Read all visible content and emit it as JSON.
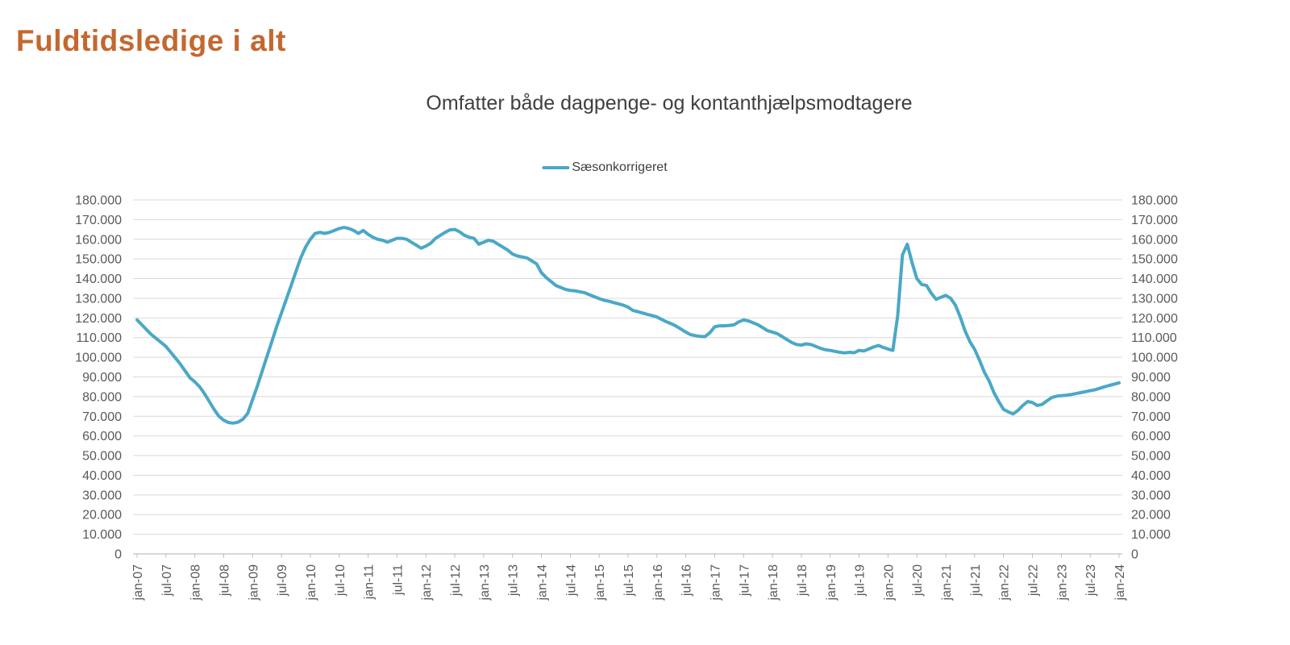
{
  "page": {
    "title": "Fuldtidsledige i alt"
  },
  "colors": {
    "title": "#C4682F",
    "subtitle": "#3F3F3F",
    "text": "#595959",
    "grid": "#D9D9D9",
    "axis": "#BFBFBF",
    "series": "#4AA8C6",
    "background": "#FFFFFF"
  },
  "legend": {
    "label": "Sæsonkorrigeret"
  },
  "chart_data": {
    "type": "line",
    "title": "Omfatter både dagpenge- og kontanthjælpsmodtagere",
    "x_unit": "month",
    "x_start": "jan-07",
    "x_end": "jan-24",
    "tick_every_months": 6,
    "x_tick_labels": [
      "jan-07",
      "jul-07",
      "jan-08",
      "jul-08",
      "jan-09",
      "jul-09",
      "jan-10",
      "jul-10",
      "jan-11",
      "jul-11",
      "jan-12",
      "jul-12",
      "jan-13",
      "jul-13",
      "jan-14",
      "jul-14",
      "jan-15",
      "jul-15",
      "jan-16",
      "jul-16",
      "jan-17",
      "jul-17",
      "jan-18",
      "jul-18",
      "jan-19",
      "jul-19",
      "jan-20",
      "jul-20",
      "jan-21",
      "jul-21",
      "jan-22",
      "jul-22",
      "jan-23",
      "jul-23",
      "jan-24"
    ],
    "ylim": [
      0,
      180000
    ],
    "ytick_step": 10000,
    "y_tick_labels": [
      "0",
      "10.000",
      "20.000",
      "30.000",
      "40.000",
      "50.000",
      "60.000",
      "70.000",
      "80.000",
      "90.000",
      "100.000",
      "110.000",
      "120.000",
      "130.000",
      "140.000",
      "150.000",
      "160.000",
      "170.000",
      "180.000"
    ],
    "grid": true,
    "legend_position": "top",
    "series": [
      {
        "name": "Sæsonkorrigeret",
        "color": "#4AA8C6",
        "monthly_values": [
          119000,
          116500,
          114000,
          111500,
          109500,
          107500,
          105500,
          102500,
          99500,
          96500,
          93000,
          89500,
          87500,
          85000,
          81500,
          77500,
          73500,
          70000,
          68000,
          66800,
          66500,
          67000,
          68500,
          71500,
          78500,
          85500,
          93000,
          100500,
          108000,
          115500,
          122500,
          129500,
          136500,
          143500,
          150500,
          156000,
          160000,
          163000,
          163500,
          163000,
          163500,
          164500,
          165500,
          166000,
          165500,
          164500,
          163000,
          164500,
          162500,
          161000,
          160000,
          159500,
          158500,
          159500,
          160500,
          160500,
          160000,
          158500,
          157000,
          155500,
          156500,
          158000,
          160500,
          162000,
          163500,
          164800,
          165000,
          163800,
          162000,
          161000,
          160500,
          157500,
          158500,
          159500,
          159000,
          157500,
          156000,
          154500,
          152500,
          151500,
          151000,
          150500,
          149000,
          147500,
          143000,
          140500,
          138500,
          136500,
          135500,
          134500,
          134000,
          133800,
          133300,
          132800,
          131800,
          130800,
          129800,
          129000,
          128500,
          127800,
          127200,
          126500,
          125500,
          123800,
          123200,
          122500,
          121800,
          121200,
          120500,
          119200,
          118000,
          117000,
          115800,
          114300,
          112800,
          111500,
          111000,
          110600,
          110500,
          112500,
          115500,
          116000,
          116000,
          116200,
          116500,
          118000,
          119000,
          118500,
          117500,
          116500,
          115000,
          113500,
          112800,
          112000,
          110500,
          109000,
          107500,
          106500,
          106200,
          106800,
          106500,
          105500,
          104500,
          103800,
          103500,
          103000,
          102500,
          102200,
          102500,
          102300,
          103500,
          103200,
          104200,
          105200,
          106000,
          105000,
          104200,
          103500,
          121000,
          152000,
          157500,
          148000,
          140000,
          137000,
          136500,
          132500,
          129500,
          130500,
          131500,
          130000,
          126500,
          120500,
          113500,
          108000,
          104000,
          98500,
          92500,
          88000,
          82000,
          77500,
          73500,
          72200,
          71200,
          73000,
          75500,
          77500,
          77000,
          75500,
          76000,
          77800,
          79500,
          80200,
          80500,
          80700,
          81000,
          81500,
          82000,
          82500,
          83000,
          83500,
          84200,
          85000,
          85700,
          86300,
          87000
        ]
      }
    ]
  }
}
